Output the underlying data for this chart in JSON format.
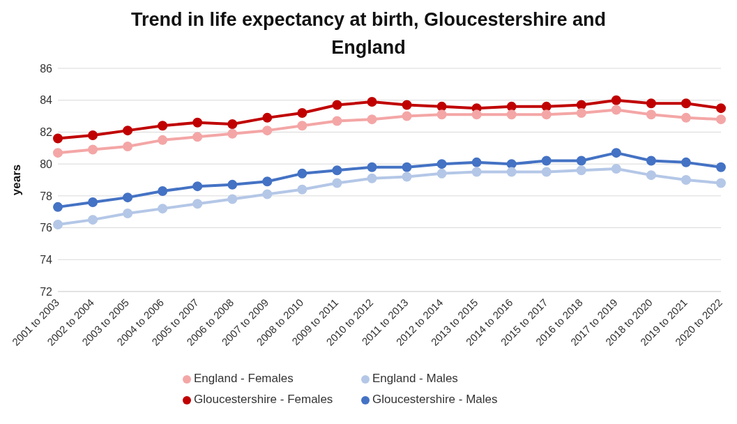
{
  "chart_data": {
    "type": "line",
    "title": "Trend in life expectancy at birth, Gloucestershire and England",
    "ylabel": "years",
    "categories": [
      "2001 to 2003",
      "2002 to 2004",
      "2003 to 2005",
      "2004 to 2006",
      "2005 to 2007",
      "2006 to 2008",
      "2007 to 2009",
      "2008 to 2010",
      "2009 to 2011",
      "2010 to 2012",
      "2011 to 2013",
      "2012 to 2014",
      "2013 to 2015",
      "2014 to 2016",
      "2015 to 2017",
      "2016 to 2018",
      "2017 to 2019",
      "2018 to 2020",
      "2019 to 2021",
      "2020 to 2022"
    ],
    "series": [
      {
        "name": "Gloucestershire - Males",
        "color": "#4472c4",
        "values": [
          77.3,
          77.6,
          77.9,
          78.3,
          78.6,
          78.7,
          78.9,
          79.4,
          79.6,
          79.8,
          79.8,
          80.0,
          80.1,
          80.0,
          80.2,
          80.2,
          80.7,
          80.2,
          80.1,
          79.8
        ]
      },
      {
        "name": "Gloucestershire - Females",
        "color": "#c00000",
        "values": [
          81.6,
          81.8,
          82.1,
          82.4,
          82.6,
          82.5,
          82.9,
          83.2,
          83.7,
          83.9,
          83.7,
          83.6,
          83.5,
          83.6,
          83.6,
          83.7,
          84.0,
          83.8,
          83.8,
          83.5
        ]
      },
      {
        "name": "England - Males",
        "color": "#b4c7e7",
        "values": [
          76.2,
          76.5,
          76.9,
          77.2,
          77.5,
          77.8,
          78.1,
          78.4,
          78.8,
          79.1,
          79.2,
          79.4,
          79.5,
          79.5,
          79.5,
          79.6,
          79.7,
          79.3,
          79.0,
          78.8
        ]
      },
      {
        "name": "England - Females",
        "color": "#f4a6a6",
        "values": [
          80.7,
          80.9,
          81.1,
          81.5,
          81.7,
          81.9,
          82.1,
          82.4,
          82.7,
          82.8,
          83.0,
          83.1,
          83.1,
          83.1,
          83.1,
          83.2,
          83.4,
          83.1,
          82.9,
          82.8
        ]
      }
    ],
    "ylim": [
      72,
      86
    ],
    "yticks": [
      72,
      74,
      76,
      78,
      80,
      82,
      84,
      86
    ],
    "grid": "y",
    "legend": "bottom",
    "marker": "circle",
    "line_style": "solid"
  }
}
